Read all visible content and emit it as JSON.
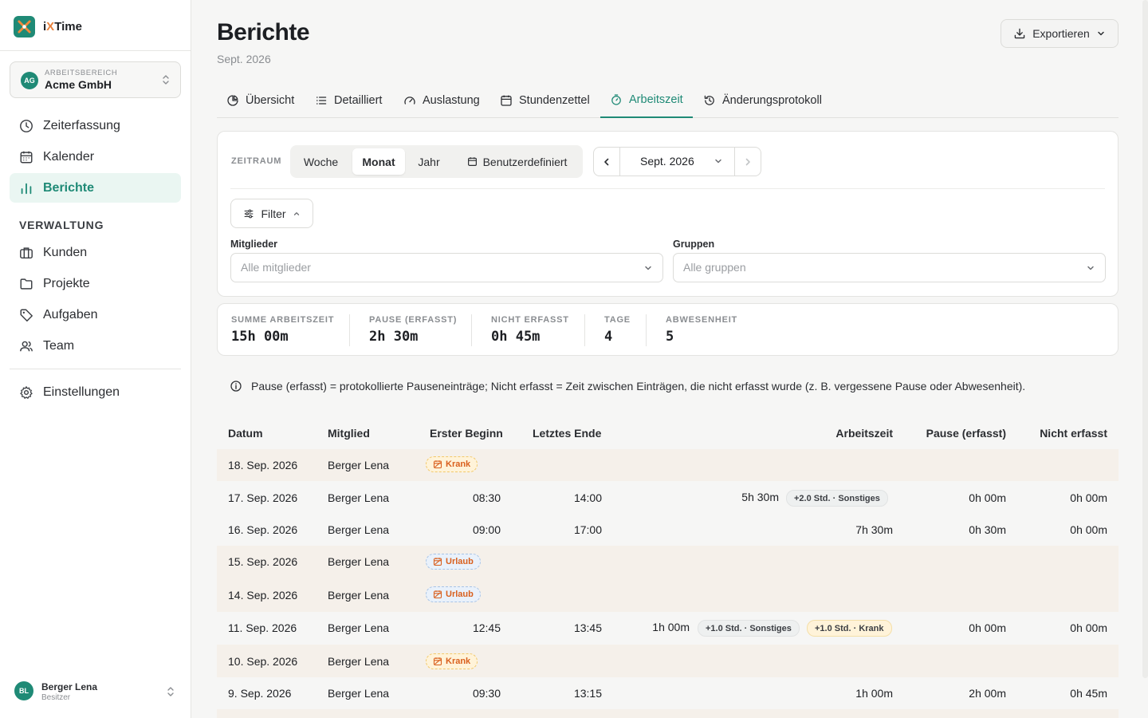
{
  "app": {
    "name_prefix": "i",
    "name_x": "X",
    "name_suffix": "Time"
  },
  "workspace": {
    "label": "ARBEITSBEREICH",
    "name": "Acme GmbH",
    "initials": "AG"
  },
  "nav": {
    "main": [
      {
        "label": "Zeiterfassung",
        "icon": "clock-icon"
      },
      {
        "label": "Kalender",
        "icon": "calendar-icon"
      },
      {
        "label": "Berichte",
        "icon": "bar-chart-icon",
        "active": true
      }
    ],
    "section_title": "VERWALTUNG",
    "admin": [
      {
        "label": "Kunden",
        "icon": "briefcase-icon"
      },
      {
        "label": "Projekte",
        "icon": "folder-icon"
      },
      {
        "label": "Aufgaben",
        "icon": "tag-icon"
      },
      {
        "label": "Team",
        "icon": "users-icon"
      }
    ],
    "settings": {
      "label": "Einstellungen",
      "icon": "gear-icon"
    }
  },
  "user": {
    "initials": "BL",
    "name": "Berger Lena",
    "role": "Besitzer"
  },
  "header": {
    "title": "Berichte",
    "subtitle": "Sept. 2026",
    "export_label": "Exportieren"
  },
  "tabs": [
    {
      "label": "Übersicht"
    },
    {
      "label": "Detailliert"
    },
    {
      "label": "Auslastung"
    },
    {
      "label": "Stundenzettel"
    },
    {
      "label": "Arbeitszeit",
      "active": true
    },
    {
      "label": "Änderungsprotokoll"
    }
  ],
  "filters": {
    "period_label": "ZEITRAUM",
    "segments": [
      {
        "label": "Woche"
      },
      {
        "label": "Monat",
        "active": true
      },
      {
        "label": "Jahr"
      },
      {
        "label": "Benutzerdefiniert"
      }
    ],
    "period_value": "Sept. 2026",
    "filter_label": "Filter",
    "members_label": "Mitglieder",
    "members_placeholder": "Alle mitglieder",
    "groups_label": "Gruppen",
    "groups_placeholder": "Alle gruppen"
  },
  "stats": [
    {
      "label": "SUMME ARBEITSZEIT",
      "value": "15h 00m"
    },
    {
      "label": "PAUSE (ERFASST)",
      "value": "2h 30m"
    },
    {
      "label": "NICHT ERFASST",
      "value": "0h 45m"
    },
    {
      "label": "TAGE",
      "value": "4"
    },
    {
      "label": "ABWESENHEIT",
      "value": "5"
    }
  ],
  "info_text": "Pause (erfasst) = protokollierte Pauseneinträge; Nicht erfasst = Zeit zwischen Einträgen, die nicht erfasst wurde (z. B. vergessene Pause oder Abwesenheit).",
  "table": {
    "headers": {
      "date": "Datum",
      "member": "Mitglied",
      "first_start": "Erster Beginn",
      "last_end": "Letztes Ende",
      "work": "Arbeitszeit",
      "break": "Pause (erfasst)",
      "untracked": "Nicht erfasst"
    },
    "rows": [
      {
        "date": "18. Sep. 2026",
        "member": "Berger Lena",
        "absence": "Krank",
        "absence_type": "sick"
      },
      {
        "date": "17. Sep. 2026",
        "member": "Berger Lena",
        "first_start": "08:30",
        "last_end": "14:00",
        "work": "5h 30m",
        "pills": [
          {
            "text": "+2.0 Std. · Sonstiges",
            "type": "other"
          }
        ],
        "break": "0h 00m",
        "untracked": "0h 00m"
      },
      {
        "date": "16. Sep. 2026",
        "member": "Berger Lena",
        "first_start": "09:00",
        "last_end": "17:00",
        "work": "7h 30m",
        "break": "0h 30m",
        "untracked": "0h 00m"
      },
      {
        "date": "15. Sep. 2026",
        "member": "Berger Lena",
        "absence": "Urlaub",
        "absence_type": "vacation"
      },
      {
        "date": "14. Sep. 2026",
        "member": "Berger Lena",
        "absence": "Urlaub",
        "absence_type": "vacation"
      },
      {
        "date": "11. Sep. 2026",
        "member": "Berger Lena",
        "first_start": "12:45",
        "last_end": "13:45",
        "work": "1h 00m",
        "pills": [
          {
            "text": "+1.0 Std. · Sonstiges",
            "type": "other"
          },
          {
            "text": "+1.0 Std. · Krank",
            "type": "sick"
          }
        ],
        "break": "0h 00m",
        "untracked": "0h 00m"
      },
      {
        "date": "10. Sep. 2026",
        "member": "Berger Lena",
        "absence": "Krank",
        "absence_type": "sick"
      },
      {
        "date": "9. Sep. 2026",
        "member": "Berger Lena",
        "first_start": "09:30",
        "last_end": "13:15",
        "work": "1h 00m",
        "break": "2h 00m",
        "untracked": "0h 45m"
      }
    ]
  },
  "colors": {
    "accent": "#1f8a76",
    "absence_text": "#d9601e",
    "sick_bg": "#fff3d9",
    "vacation_bg": "#e9f1fb",
    "shade_row": "#f5f0ea"
  }
}
